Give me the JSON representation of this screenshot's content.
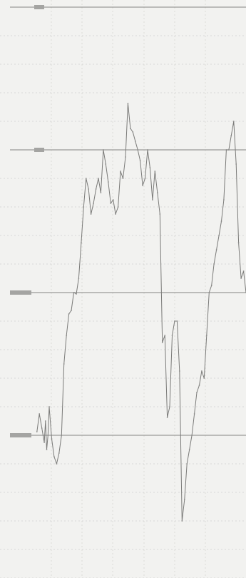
{
  "chart_data": {
    "type": "line",
    "title": "",
    "xlabel": "",
    "ylabel": "",
    "xlim": [
      0,
      100
    ],
    "ylim": [
      0,
      800
    ],
    "grid": true,
    "legend": "none",
    "major_gridlines_y": [
      800,
      600,
      400,
      200
    ],
    "tick_labels": [
      "",
      "",
      "",
      ""
    ],
    "series": [
      {
        "x": [
          15,
          16,
          17,
          18,
          18.5,
          19,
          19.5,
          20,
          21,
          22,
          23,
          24,
          25,
          26,
          27,
          28,
          29,
          30,
          31,
          32,
          33,
          34,
          35,
          36,
          37,
          38,
          39,
          40,
          41,
          42,
          43,
          44,
          45,
          46,
          47,
          48,
          49,
          50,
          51,
          52,
          53,
          54,
          55,
          56,
          57,
          58,
          59,
          60,
          61,
          62,
          63,
          64,
          65,
          66,
          67,
          68,
          69,
          70,
          71,
          72,
          73,
          74,
          75,
          76,
          77,
          78,
          79,
          80,
          81,
          82,
          83,
          84,
          85,
          86,
          87,
          88,
          89,
          90,
          91,
          92,
          93,
          94,
          95,
          96,
          97,
          98,
          99,
          100
        ],
        "y": [
          205,
          230,
          210,
          190,
          220,
          180,
          200,
          240,
          195,
          170,
          160,
          175,
          200,
          300,
          340,
          370,
          375,
          400,
          398,
          420,
          470,
          520,
          560,
          545,
          510,
          525,
          545,
          560,
          540,
          600,
          580,
          555,
          525,
          530,
          510,
          520,
          570,
          560,
          590,
          665,
          630,
          625,
          612,
          600,
          585,
          550,
          560,
          600,
          575,
          530,
          570,
          540,
          510,
          330,
          340,
          225,
          240,
          340,
          360,
          360,
          290,
          80,
          110,
          160,
          180,
          200,
          230,
          260,
          270,
          290,
          280,
          340,
          400,
          410,
          440,
          460,
          480,
          500,
          530,
          600,
          600,
          620,
          640,
          580,
          470,
          420,
          430,
          400
        ]
      }
    ]
  }
}
